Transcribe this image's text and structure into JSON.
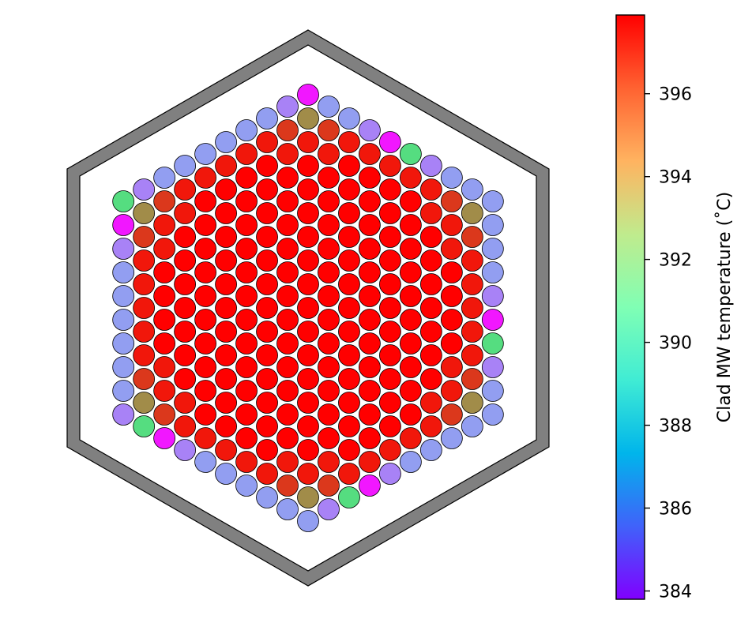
{
  "chart_data": {
    "type": "heatmap",
    "description_kind": "hexagonal fuel-assembly pin map",
    "grid_on": false,
    "colormap": "rainbow",
    "colorbar": {
      "label": "Clad MW temperature (˚C)",
      "vmin": 383.8,
      "vmax": 397.9,
      "ticks": [
        384,
        386,
        388,
        390,
        392,
        394,
        396
      ],
      "tick_labels": [
        "384",
        "386",
        "388",
        "390",
        "392",
        "394",
        "396"
      ],
      "placement": "right"
    },
    "rings": 10,
    "pin_values_by_ring": [
      [
        397.9
      ],
      [
        397.9
      ],
      [
        397.9
      ],
      [
        397.9
      ],
      [
        397.9
      ],
      [
        397.9
      ],
      [
        397.9
      ],
      [
        397.5,
        397.5,
        397.9,
        397.9,
        397.9,
        397.9,
        397.5
      ],
      [
        395.3,
        396.9,
        397.5,
        397.5,
        397.5,
        397.5,
        397.5,
        396.9
      ],
      [
        384.2,
        386.2,
        386.8,
        386.8,
        386.8,
        386.8,
        386.8,
        386.8,
        386.2,
        393.2
      ]
    ],
    "ring_note": "Ring k has 6k pins (ring 0 has 1). Listed values: first pin is the corner, following values run along one side; pattern repeats on all 6 sides. Inner rings 0-6 uniformly 397.9.",
    "housing_color": "#808080"
  }
}
